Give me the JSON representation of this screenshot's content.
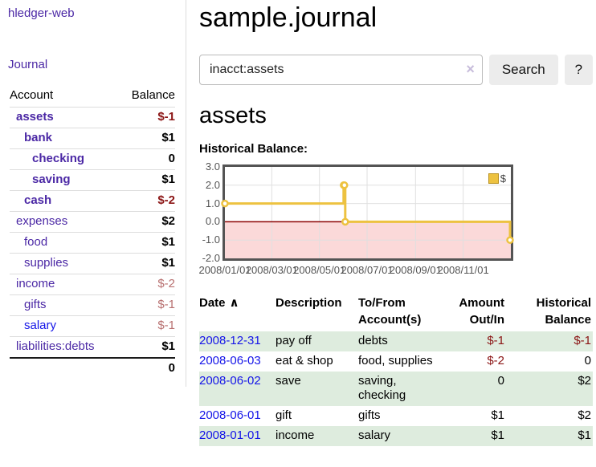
{
  "app": {
    "title": "hledger-web"
  },
  "nav": {
    "journal": "Journal"
  },
  "sidebar": {
    "col_account": "Account",
    "col_balance": "Balance",
    "accounts": [
      {
        "name": "assets",
        "depth": 1,
        "bold": true,
        "balance": "$-1",
        "balance_class": "neg"
      },
      {
        "name": "bank",
        "depth": 2,
        "bold": true,
        "balance": "$1",
        "balance_class": "pos"
      },
      {
        "name": "checking",
        "depth": 3,
        "bold": true,
        "balance": "0",
        "balance_class": "pos"
      },
      {
        "name": "saving",
        "depth": 3,
        "bold": true,
        "balance": "$1",
        "balance_class": "pos"
      },
      {
        "name": "cash",
        "depth": 2,
        "bold": true,
        "balance": "$-2",
        "balance_class": "neg"
      },
      {
        "name": "expenses",
        "depth": 1,
        "bold": false,
        "balance": "$2",
        "balance_class": "pos"
      },
      {
        "name": "food",
        "depth": 2,
        "bold": false,
        "balance": "$1",
        "balance_class": "pos"
      },
      {
        "name": "supplies",
        "depth": 2,
        "bold": false,
        "balance": "$1",
        "balance_class": "pos"
      },
      {
        "name": "income",
        "depth": 1,
        "bold": false,
        "balance": "$-2",
        "balance_class": "neg-muted"
      },
      {
        "name": "gifts",
        "depth": 2,
        "bold": false,
        "balance": "$-1",
        "balance_class": "neg-muted"
      },
      {
        "name": "salary",
        "depth": 2,
        "bold": false,
        "link_color": "blue",
        "balance": "$-1",
        "balance_class": "neg-muted"
      },
      {
        "name": "liabilities:debts",
        "depth": 1,
        "bold": false,
        "balance": "$1",
        "balance_class": "pos"
      }
    ],
    "total": "0"
  },
  "main": {
    "title": "sample.journal",
    "search": {
      "value": "inacct:assets",
      "clear_icon": "×",
      "button_label": "Search",
      "help_label": "?"
    },
    "account_heading": "assets",
    "chart_title": "Historical Balance:"
  },
  "chart_data": {
    "type": "line",
    "style": "step-after",
    "title": "Historical Balance",
    "x_range": [
      "2008-01-01",
      "2009-01-01"
    ],
    "ylim": [
      -2,
      3
    ],
    "y_ticks": [
      "3.0",
      "2.0",
      "1.0",
      "0.0",
      "-1.0",
      "-2.0"
    ],
    "x_ticks": [
      "2008/01/01",
      "2008/03/01",
      "2008/05/01",
      "2008/07/01",
      "2008/09/01",
      "2008/11/01"
    ],
    "grid": true,
    "legend": {
      "label": "$",
      "position": "top-right"
    },
    "series": [
      {
        "name": "$",
        "color": "#edc240",
        "points": [
          [
            "2008-01-01",
            1
          ],
          [
            "2008-06-01",
            2
          ],
          [
            "2008-06-02",
            2
          ],
          [
            "2008-06-03",
            0
          ],
          [
            "2008-12-31",
            -1
          ]
        ]
      }
    ],
    "negative_region_color": "#fbd9d9",
    "zero_line_color": "#8b0000",
    "grid_color": "#e0e0e0"
  },
  "register": {
    "headers": {
      "date": "Date",
      "sort_icon": "∧",
      "description": "Description",
      "accounts": "To/From Account(s)",
      "amount": "Amount Out/In",
      "balance": "Historical Balance"
    },
    "rows": [
      {
        "date": "2008-12-31",
        "description": "pay off",
        "accounts": "debts",
        "amount": "$-1",
        "amount_negative": true,
        "balance": "$-1",
        "balance_negative": true
      },
      {
        "date": "2008-06-03",
        "description": "eat & shop",
        "accounts": "food, supplies",
        "amount": "$-2",
        "amount_negative": true,
        "balance": "0",
        "balance_negative": false
      },
      {
        "date": "2008-06-02",
        "description": "save",
        "accounts": "saving, checking",
        "amount": "0",
        "amount_negative": false,
        "balance": "$2",
        "balance_negative": false
      },
      {
        "date": "2008-06-01",
        "description": "gift",
        "accounts": "gifts",
        "amount": "$1",
        "amount_negative": false,
        "balance": "$2",
        "balance_negative": false
      },
      {
        "date": "2008-01-01",
        "description": "income",
        "accounts": "salary",
        "amount": "$1",
        "amount_negative": false,
        "balance": "$1",
        "balance_negative": false
      }
    ]
  },
  "colors": {
    "link_purple": "#4b28a5",
    "link_blue": "#1414e8",
    "negative_strong": "#8b1515",
    "negative_muted": "#b87070",
    "row_stripe_green": "#deecde",
    "chart_gold": "#edc240",
    "chart_border": "#545454"
  }
}
